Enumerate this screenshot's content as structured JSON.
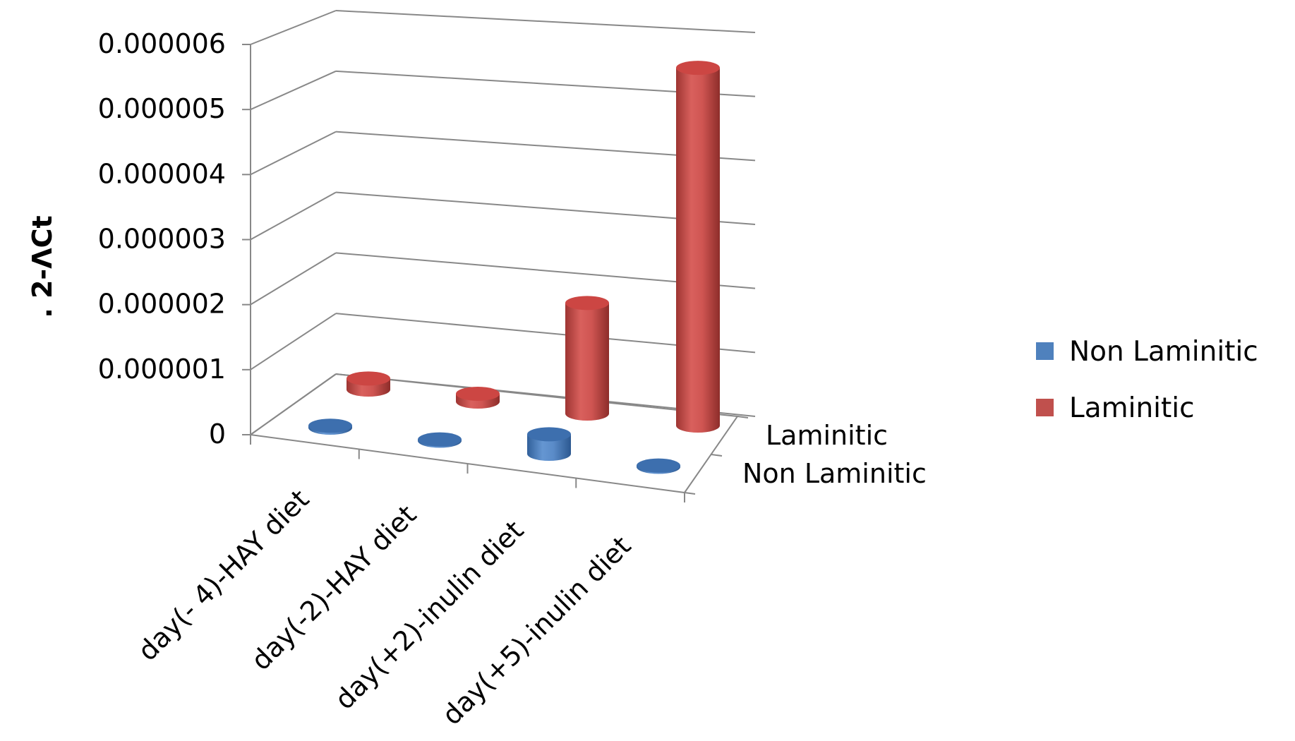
{
  "chart_data": {
    "type": "bar",
    "style": "3d-cylinder",
    "title": "",
    "xlabel": "",
    "ylabel": ". 2-ΛCt",
    "categories": [
      "day(- 4)-HAY diet",
      "day(-2)-HAY diet",
      "day(+2)-inulin diet",
      "day(+5)-inulin diet"
    ],
    "depth_labels": [
      "Laminitic",
      "Non Laminitic"
    ],
    "yticks": [
      "0",
      "0.000001",
      "0.000002",
      "0.000003",
      "0.000004",
      "0.000005",
      "0.000006"
    ],
    "ylim": [
      0,
      6e-06
    ],
    "grid": true,
    "legend_position": "right",
    "series": [
      {
        "name": "Non Laminitic",
        "color": "#4F81BD",
        "values": [
          3e-08,
          2e-08,
          3e-07,
          2e-08
        ]
      },
      {
        "name": "Laminitic",
        "color": "#C0504D",
        "values": [
          1.7e-07,
          1.2e-07,
          1.7e-06,
          5.5e-06
        ]
      }
    ]
  }
}
